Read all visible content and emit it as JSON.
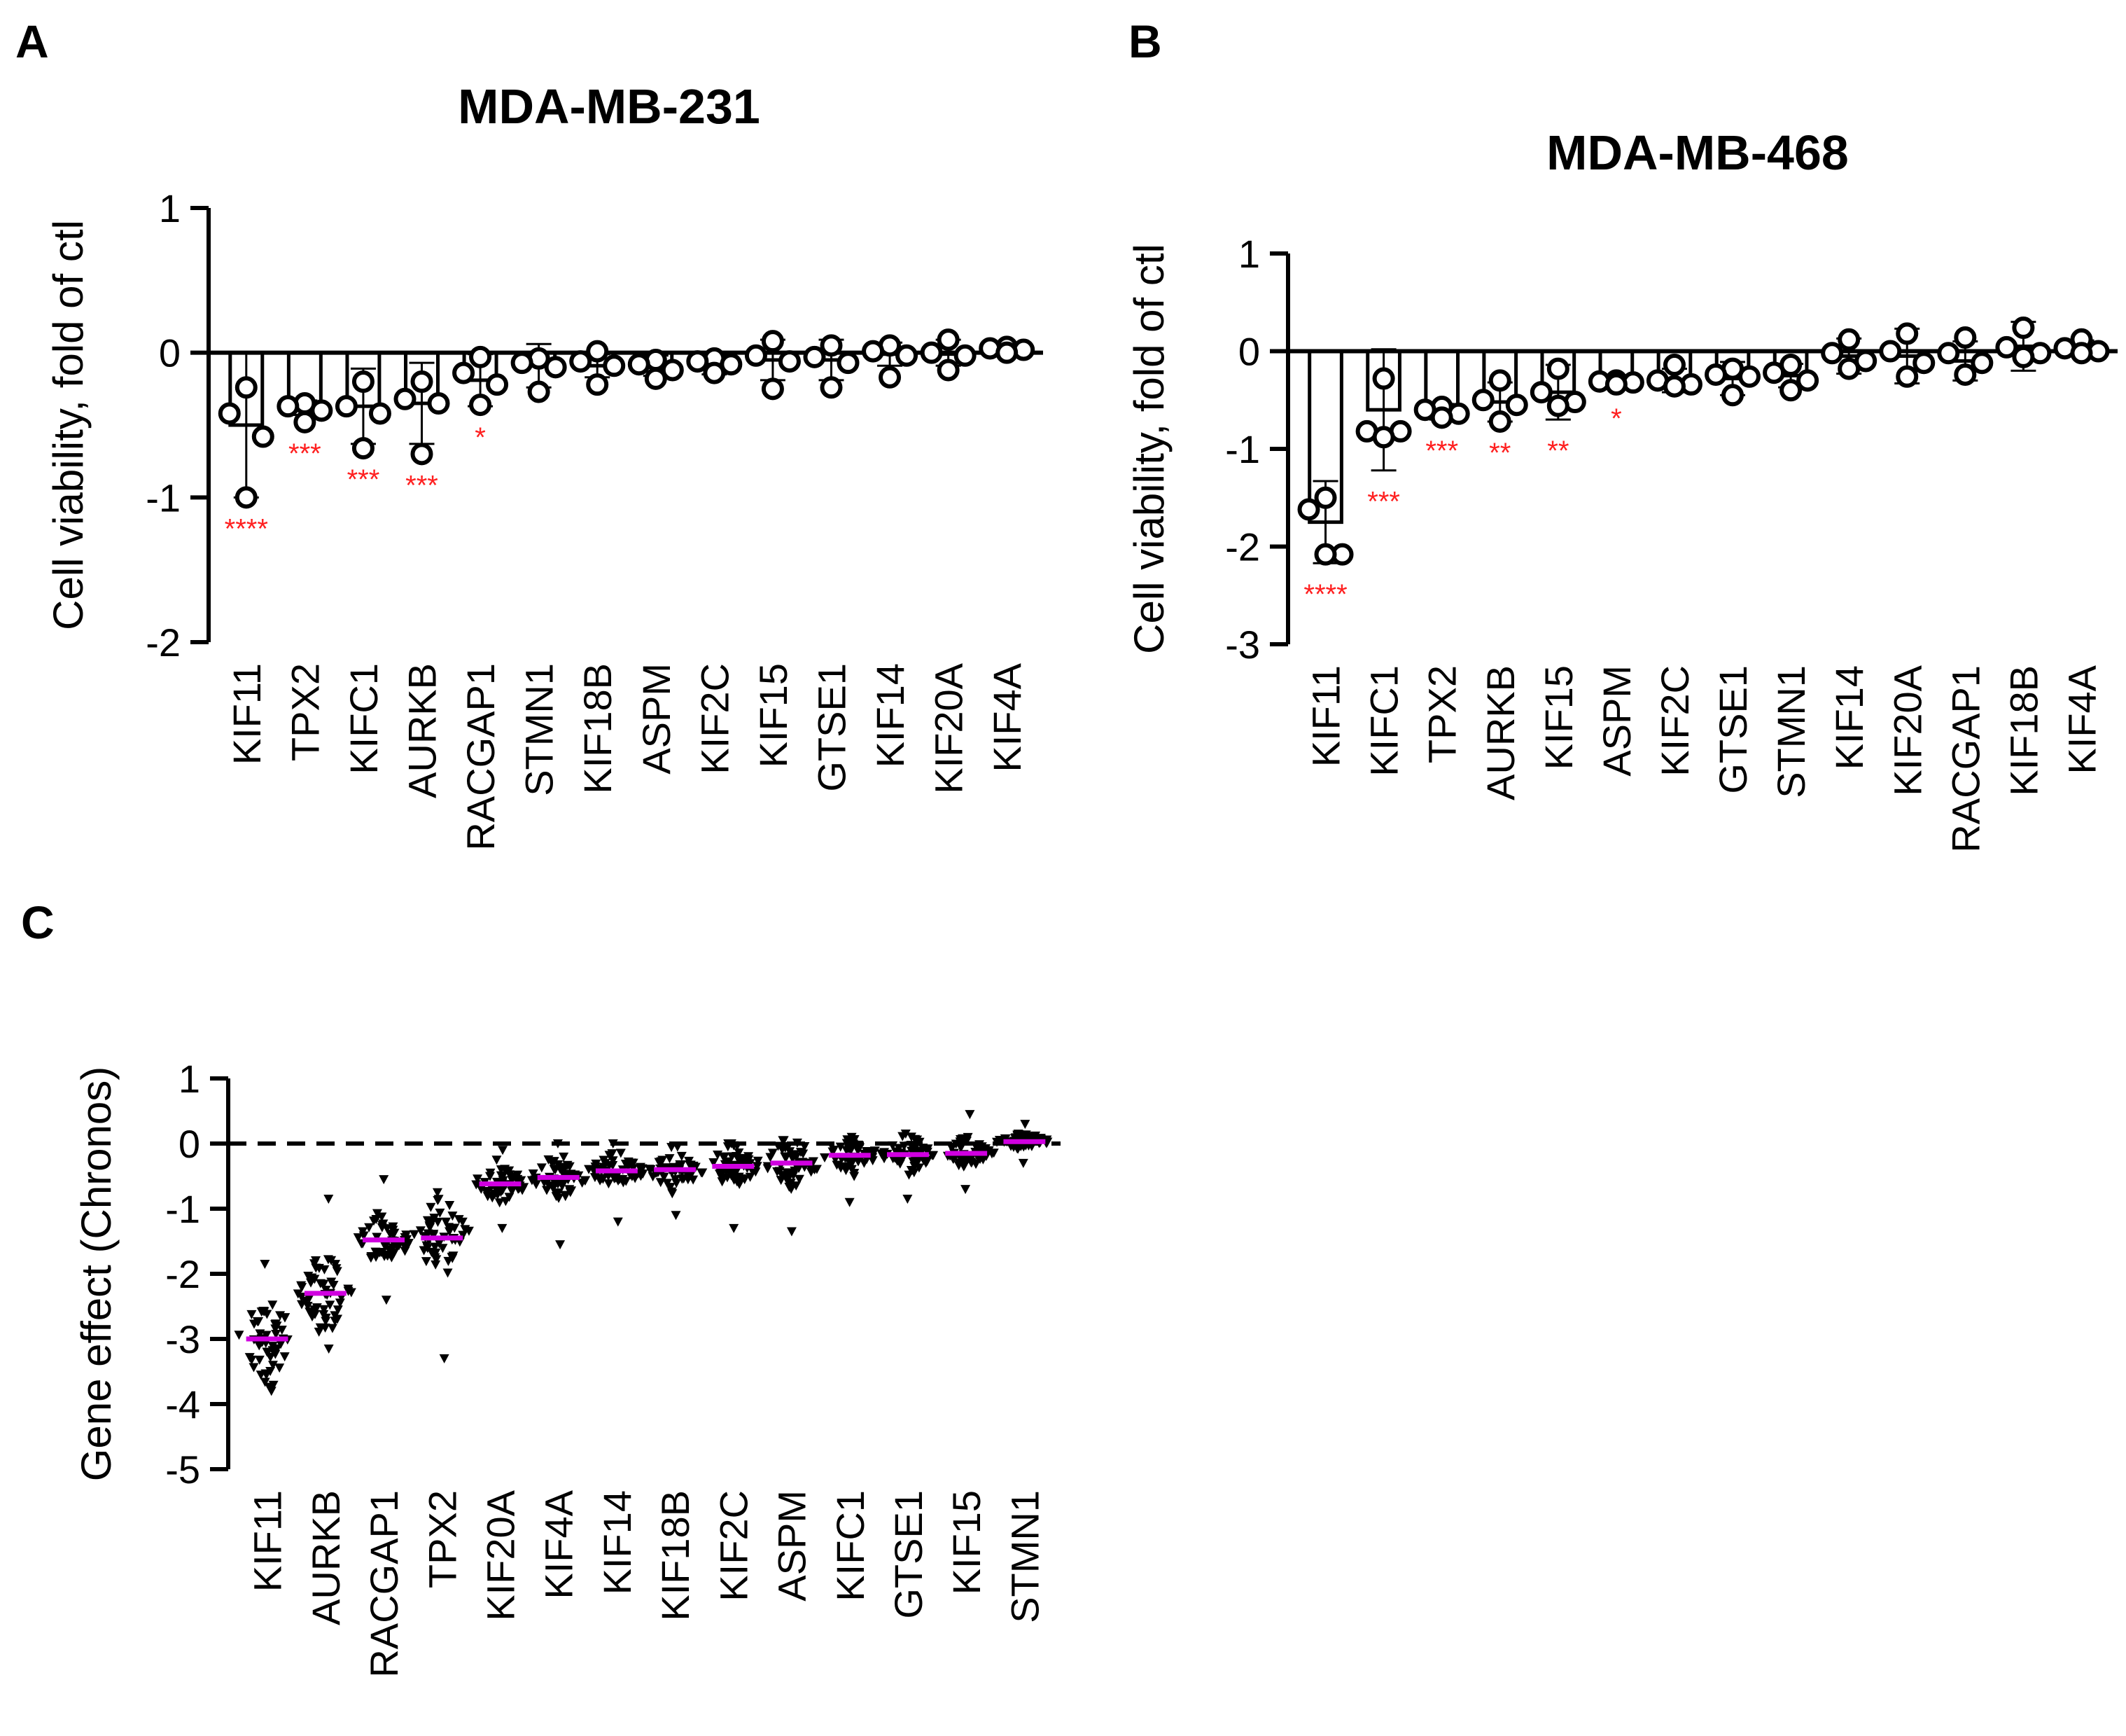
{
  "chart_data": [
    {
      "panel": "A",
      "type": "bar",
      "title": "MDA-MB-231",
      "ylabel": "Cell viability, fold of ctl",
      "ylim": [
        -2,
        1
      ],
      "yticks": [
        1,
        0,
        -1,
        -2
      ],
      "categories": [
        "KIF11",
        "TPX2",
        "KIFC1",
        "AURKB",
        "RACGAP1",
        "STMN1",
        "KIF18B",
        "ASPM",
        "KIF2C",
        "KIF15",
        "GTSE1",
        "KIF14",
        "KIF20A",
        "KIF4A"
      ],
      "values": [
        -0.5,
        -0.38,
        -0.37,
        -0.35,
        -0.19,
        -0.09,
        -0.09,
        -0.09,
        -0.08,
        -0.05,
        -0.05,
        -0.01,
        0.0,
        0.02
      ],
      "error": [
        0.5,
        0.05,
        0.26,
        0.28,
        0.18,
        0.15,
        0.08,
        0.07,
        0.07,
        0.14,
        0.14,
        0.08,
        0.09,
        0.03
      ],
      "points": [
        [
          -0.24,
          -0.42,
          -0.58,
          -1.0
        ],
        [
          -0.35,
          -0.37,
          -0.4,
          -0.48
        ],
        [
          -0.2,
          -0.37,
          -0.42,
          -0.66
        ],
        [
          -0.2,
          -0.32,
          -0.35,
          -0.7
        ],
        [
          -0.03,
          -0.14,
          -0.22,
          -0.36
        ],
        [
          -0.04,
          -0.07,
          -0.1,
          -0.27
        ],
        [
          0.01,
          -0.06,
          -0.09,
          -0.22
        ],
        [
          -0.05,
          -0.08,
          -0.12,
          -0.18
        ],
        [
          -0.04,
          -0.06,
          -0.08,
          -0.14
        ],
        [
          0.08,
          -0.02,
          -0.06,
          -0.25
        ],
        [
          0.05,
          -0.03,
          -0.07,
          -0.24
        ],
        [
          0.05,
          0.01,
          -0.02,
          -0.17
        ],
        [
          0.09,
          0.0,
          -0.02,
          -0.12
        ],
        [
          0.04,
          0.03,
          0.02,
          0.0
        ]
      ],
      "significance": [
        "****",
        "***",
        "***",
        "***",
        "*",
        "",
        "",
        "",
        "",
        "",
        "",
        "",
        "",
        ""
      ],
      "colors": {
        "bar": "#000000",
        "significance": "#ff2020"
      }
    },
    {
      "panel": "B",
      "type": "bar",
      "title": "MDA-MB-468",
      "ylabel": "Cell viability, fold of ctl",
      "ylim": [
        -3,
        1
      ],
      "yticks": [
        1,
        0,
        -1,
        -2,
        -3
      ],
      "categories": [
        "KIF11",
        "KIFC1",
        "TPX2",
        "AURKB",
        "KIF15",
        "ASPM",
        "KIF2C",
        "GTSE1",
        "STMN1",
        "KIF14",
        "KIF20A",
        "RACGAP1",
        "KIF18B",
        "KIF4A"
      ],
      "values": [
        -1.75,
        -0.6,
        -0.62,
        -0.52,
        -0.42,
        -0.32,
        -0.3,
        -0.28,
        -0.25,
        -0.05,
        -0.05,
        -0.1,
        0.05,
        0.03
      ],
      "error": [
        0.42,
        0.62,
        0.08,
        0.2,
        0.28,
        0.05,
        0.12,
        0.17,
        0.12,
        0.18,
        0.28,
        0.2,
        0.25,
        0.08
      ],
      "points": [
        [
          -1.5,
          -1.62,
          -2.08,
          -2.08
        ],
        [
          -0.28,
          -0.82,
          -0.82,
          -0.88
        ],
        [
          -0.57,
          -0.6,
          -0.64,
          -0.68
        ],
        [
          -0.3,
          -0.5,
          -0.55,
          -0.72
        ],
        [
          -0.18,
          -0.42,
          -0.52,
          -0.56
        ],
        [
          -0.3,
          -0.31,
          -0.32,
          -0.34
        ],
        [
          -0.14,
          -0.3,
          -0.34,
          -0.36
        ],
        [
          -0.18,
          -0.24,
          -0.26,
          -0.45
        ],
        [
          -0.14,
          -0.22,
          -0.3,
          -0.4
        ],
        [
          0.12,
          -0.02,
          -0.1,
          -0.18
        ],
        [
          0.18,
          0.0,
          -0.12,
          -0.26
        ],
        [
          0.14,
          -0.02,
          -0.12,
          -0.24
        ],
        [
          0.24,
          0.04,
          -0.02,
          -0.06
        ],
        [
          0.12,
          0.03,
          0.0,
          -0.02
        ]
      ],
      "significance": [
        "****",
        "***",
        "***",
        "**",
        "**",
        "*",
        "",
        "",
        "",
        "",
        "",
        "",
        "",
        ""
      ],
      "colors": {
        "bar": "#000000",
        "significance": "#ff2020"
      }
    },
    {
      "panel": "C",
      "type": "scatter",
      "title": "",
      "ylabel": "Gene effect (Chronos)",
      "ylim": [
        -5,
        1
      ],
      "yticks": [
        1,
        0,
        -1,
        -2,
        -3,
        -4,
        -5
      ],
      "categories": [
        "KIF11",
        "AURKB",
        "RACGAP1",
        "TPX2",
        "KIF20A",
        "KIF4A",
        "KIF14",
        "KIF18B",
        "KIF2C",
        "ASPM",
        "KIFC1",
        "GTSE1",
        "KIF15",
        "STMN1"
      ],
      "medians": [
        -3.0,
        -2.3,
        -1.48,
        -1.45,
        -0.62,
        -0.52,
        -0.42,
        -0.4,
        -0.35,
        -0.3,
        -0.18,
        -0.17,
        -0.15,
        0.03
      ],
      "ranges": [
        [
          -3.8,
          -1.85
        ],
        [
          -3.15,
          -0.85
        ],
        [
          -2.4,
          -0.55
        ],
        [
          -3.3,
          -0.75
        ],
        [
          -1.3,
          -0.1
        ],
        [
          -1.55,
          0.0
        ],
        [
          -1.2,
          0.0
        ],
        [
          -1.1,
          -0.05
        ],
        [
          -1.3,
          0.0
        ],
        [
          -1.35,
          0.05
        ],
        [
          -0.9,
          0.1
        ],
        [
          -0.85,
          0.15
        ],
        [
          -0.7,
          0.45
        ],
        [
          -0.3,
          0.3
        ]
      ],
      "spreads": [
        0.32,
        0.3,
        0.2,
        0.32,
        0.13,
        0.17,
        0.13,
        0.15,
        0.16,
        0.19,
        0.13,
        0.13,
        0.1,
        0.06
      ],
      "reference_line": 0,
      "colors": {
        "points": "#000000",
        "median": "#d000e0"
      }
    }
  ]
}
